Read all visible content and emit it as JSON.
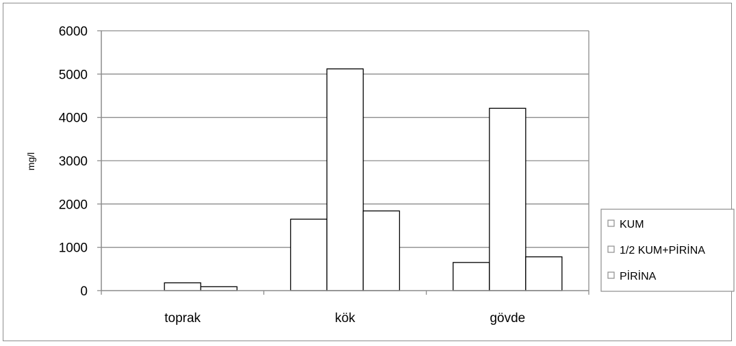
{
  "chart_data": {
    "type": "bar",
    "title": "",
    "xlabel": "",
    "ylabel": "mg/l",
    "ylim": [
      0,
      6000
    ],
    "yticks": [
      0,
      1000,
      2000,
      3000,
      4000,
      5000,
      6000
    ],
    "grid": true,
    "legend_position": "right",
    "categories": [
      "toprak",
      "kök",
      "gövde"
    ],
    "series": [
      {
        "name": "KUM",
        "values": [
          0,
          1650,
          650
        ],
        "color": "#ffffff"
      },
      {
        "name": "1/2 KUM+PİRİNA",
        "values": [
          180,
          5120,
          4210
        ],
        "color": "#ffffff"
      },
      {
        "name": "PİRİNA",
        "values": [
          90,
          1840,
          780
        ],
        "color": "#ffffff"
      }
    ]
  }
}
